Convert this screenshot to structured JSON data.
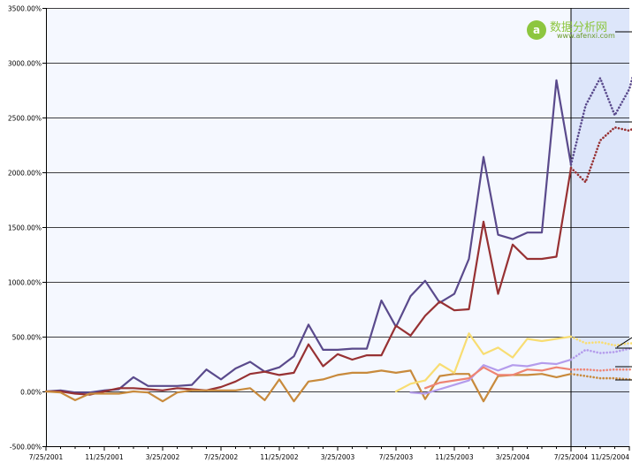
{
  "watermark": {
    "text": "数据分析网",
    "url": "www.afenxi.com",
    "badge": "a"
  },
  "colors": {
    "plot_bg": "#f5f8ff",
    "forecast_bg": "#dde6fa",
    "grid": "#000000",
    "purple": "#5a4a8c",
    "red": "#973133",
    "orange": "#c88a3c",
    "yellow": "#f8dd72",
    "lavender": "#b49cec",
    "salmon": "#ee8473"
  },
  "chart_data": {
    "type": "line",
    "title": "",
    "xlabel": "",
    "ylabel": "",
    "ylim": [
      -500,
      3500
    ],
    "y_ticks": [
      {
        "value": 3500,
        "label": "3500.00%"
      },
      {
        "value": 3000,
        "label": "3000.00%"
      },
      {
        "value": 2500,
        "label": "2500.00%"
      },
      {
        "value": 2000,
        "label": "2000.00%"
      },
      {
        "value": 1500,
        "label": "1500.00%"
      },
      {
        "value": 1000,
        "label": "1000.00%"
      },
      {
        "value": 500,
        "label": "500.00%"
      },
      {
        "value": 0,
        "label": "0.00%"
      },
      {
        "value": -500,
        "label": "-500.00%"
      }
    ],
    "x_range": [
      0,
      40
    ],
    "x_ticks": [
      {
        "x": 0,
        "label": "7/25/2001"
      },
      {
        "x": 4,
        "label": "11/25/2001"
      },
      {
        "x": 8,
        "label": "3/25/2002"
      },
      {
        "x": 12,
        "label": "7/25/2002"
      },
      {
        "x": 16,
        "label": "11/25/2002"
      },
      {
        "x": 20,
        "label": "3/25/2003"
      },
      {
        "x": 24,
        "label": "7/25/2003"
      },
      {
        "x": 28,
        "label": "11/25/2003"
      },
      {
        "x": 32,
        "label": "3/25/2004"
      },
      {
        "x": 36,
        "label": "7/25/2004"
      },
      {
        "x": 40,
        "label": "11/25/2004"
      }
    ],
    "forecast_start_x": 36,
    "grid": true,
    "series": [
      {
        "color_key": "purple",
        "style": "solid",
        "x_start": 0,
        "values": [
          0,
          10,
          -10,
          -10,
          10,
          20,
          130,
          50,
          50,
          50,
          60,
          200,
          110,
          210,
          270,
          180,
          220,
          320,
          610,
          380,
          380,
          390,
          390,
          830,
          590,
          870,
          1010,
          810,
          890,
          1210,
          2140,
          1430,
          1390,
          1450,
          1450,
          2840,
          2070
        ]
      },
      {
        "color_key": "purple",
        "style": "dotted",
        "x_start": 36,
        "values": [
          2070,
          2610,
          2860,
          2520,
          2760,
          3250
        ]
      },
      {
        "color_key": "red",
        "style": "solid",
        "x_start": 0,
        "values": [
          0,
          0,
          -20,
          -30,
          0,
          30,
          30,
          20,
          10,
          30,
          20,
          10,
          40,
          90,
          160,
          180,
          150,
          170,
          430,
          230,
          340,
          290,
          330,
          330,
          600,
          510,
          690,
          820,
          740,
          750,
          1550,
          890,
          1340,
          1210,
          1210,
          1230,
          2040
        ]
      },
      {
        "color_key": "red",
        "style": "dotted",
        "x_start": 36,
        "values": [
          2040,
          1910,
          2290,
          2410,
          2380,
          2460
        ]
      },
      {
        "color_key": "orange",
        "style": "solid",
        "x_start": 0,
        "values": [
          0,
          -10,
          -80,
          -20,
          -20,
          -20,
          0,
          -10,
          -90,
          -10,
          10,
          10,
          10,
          10,
          30,
          -80,
          110,
          -90,
          90,
          110,
          150,
          170,
          170,
          190,
          170,
          190,
          -70,
          140,
          160,
          160,
          -90,
          140,
          150,
          150,
          160,
          130,
          160
        ]
      },
      {
        "color_key": "orange",
        "style": "dotted",
        "x_start": 36,
        "values": [
          160,
          140,
          120,
          120,
          110,
          100
        ]
      },
      {
        "color_key": "yellow",
        "style": "solid",
        "x_start": 24,
        "values": [
          0,
          70,
          100,
          250,
          170,
          530,
          340,
          400,
          310,
          480,
          460,
          480,
          500
        ]
      },
      {
        "color_key": "yellow",
        "style": "dotted",
        "x_start": 36,
        "values": [
          500,
          440,
          450,
          420,
          440,
          430
        ]
      },
      {
        "color_key": "lavender",
        "style": "solid",
        "x_start": 25,
        "values": [
          -10,
          -20,
          20,
          60,
          100,
          240,
          190,
          240,
          230,
          260,
          250,
          290
        ]
      },
      {
        "color_key": "lavender",
        "style": "dotted",
        "x_start": 36,
        "values": [
          290,
          380,
          350,
          360,
          390,
          390
        ]
      },
      {
        "color_key": "salmon",
        "style": "solid",
        "x_start": 26,
        "values": [
          30,
          80,
          100,
          120,
          220,
          150,
          150,
          200,
          190,
          220,
          200
        ]
      },
      {
        "color_key": "salmon",
        "style": "dotted",
        "x_start": 36,
        "values": [
          200,
          200,
          190,
          200,
          200,
          210
        ]
      }
    ]
  }
}
